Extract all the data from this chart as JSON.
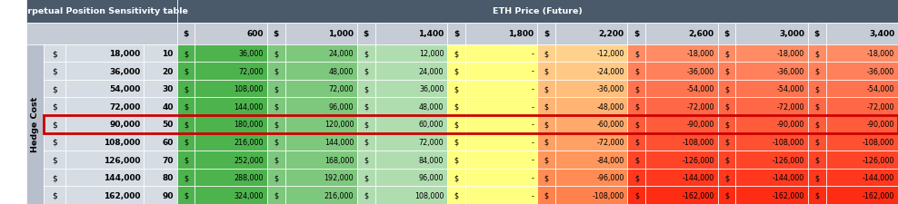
{
  "title_left": "Perpetual Position Sensitivity table",
  "title_right": "ETH Price (Future)",
  "col_header_prices": [
    600,
    1000,
    1400,
    1800,
    2200,
    2600,
    3000,
    3400
  ],
  "row_hedge_costs": [
    18000,
    36000,
    54000,
    72000,
    90000,
    108000,
    126000,
    144000,
    162000
  ],
  "row_eth_amounts": [
    10,
    20,
    30,
    40,
    50,
    60,
    70,
    80,
    90
  ],
  "values": [
    [
      36000,
      24000,
      12000,
      0,
      -12000,
      -18000,
      -18000,
      -18000
    ],
    [
      72000,
      48000,
      24000,
      0,
      -24000,
      -36000,
      -36000,
      -36000
    ],
    [
      108000,
      72000,
      36000,
      0,
      -36000,
      -54000,
      -54000,
      -54000
    ],
    [
      144000,
      96000,
      48000,
      0,
      -48000,
      -72000,
      -72000,
      -72000
    ],
    [
      180000,
      120000,
      60000,
      0,
      -60000,
      -90000,
      -90000,
      -90000
    ],
    [
      216000,
      144000,
      72000,
      0,
      -72000,
      -108000,
      -108000,
      -108000
    ],
    [
      252000,
      168000,
      84000,
      0,
      -84000,
      -126000,
      -126000,
      -126000
    ],
    [
      288000,
      192000,
      96000,
      0,
      -96000,
      -144000,
      -144000,
      -144000
    ],
    [
      324000,
      216000,
      108000,
      0,
      -108000,
      -162000,
      -162000,
      -162000
    ]
  ],
  "highlighted_row": 4,
  "header_bg": "#4a5a6b",
  "header_text": "#ffffff",
  "left_panel_bg": "#d6dce4",
  "subheader_bg": "#c5ccd6",
  "highlight_border": "#cc0000",
  "hedge_cost_label_bg": "#b8bfcc"
}
